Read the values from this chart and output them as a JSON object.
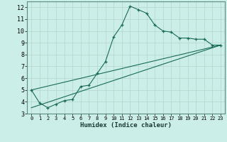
{
  "title": "",
  "xlabel": "Humidex (Indice chaleur)",
  "bg_color": "#cceee8",
  "grid_color": "#b8d8d2",
  "line_color": "#1a6b5a",
  "xlim": [
    -0.5,
    23.5
  ],
  "ylim": [
    3.0,
    12.5
  ],
  "yticks": [
    3,
    4,
    5,
    6,
    7,
    8,
    9,
    10,
    11,
    12
  ],
  "xticks": [
    0,
    1,
    2,
    3,
    4,
    5,
    6,
    7,
    8,
    9,
    10,
    11,
    12,
    13,
    14,
    15,
    16,
    17,
    18,
    19,
    20,
    21,
    22,
    23
  ],
  "main_x": [
    0,
    1,
    2,
    3,
    4,
    5,
    6,
    7,
    8,
    9,
    10,
    11,
    12,
    13,
    14,
    15,
    16,
    17,
    18,
    19,
    20,
    21,
    22,
    23
  ],
  "main_y": [
    5.0,
    3.9,
    3.5,
    3.8,
    4.1,
    4.2,
    5.3,
    5.4,
    6.4,
    7.4,
    9.5,
    10.5,
    12.1,
    11.8,
    11.5,
    10.5,
    10.0,
    9.9,
    9.4,
    9.4,
    9.3,
    9.3,
    8.8,
    8.8
  ],
  "line2_x": [
    0,
    23
  ],
  "line2_y": [
    5.0,
    8.8
  ],
  "line3_x": [
    0,
    23
  ],
  "line3_y": [
    3.5,
    8.8
  ]
}
